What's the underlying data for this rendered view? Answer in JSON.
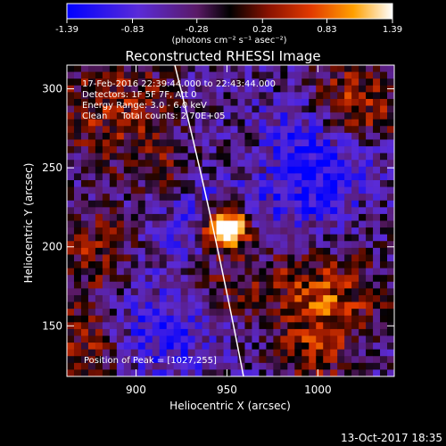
{
  "colorbar": {
    "ticks": [
      "-1.39",
      "-0.83",
      "-0.28",
      "0.28",
      "0.83",
      "1.39"
    ],
    "units": "(photons cm⁻² s⁻¹ asec⁻²)",
    "range": [
      -1.39,
      1.39
    ]
  },
  "chart_data": {
    "type": "heatmap",
    "title": "Reconstructed RHESSI Image",
    "xlabel": "Heliocentric X (arcsec)",
    "ylabel": "Heliocentric Y (arcsec)",
    "xlim": [
      862,
      1042
    ],
    "ylim": [
      118,
      315
    ],
    "x_ticks": [
      "900",
      "950",
      "1000"
    ],
    "y_ticks": [
      "150",
      "200",
      "250",
      "300"
    ],
    "x_tick_values": [
      900,
      950,
      1000
    ],
    "y_tick_values": [
      150,
      200,
      250,
      300
    ],
    "peak": [
      1027,
      255
    ],
    "info_lines": [
      "17-Feb-2016 22:39:44.000 to 22:43:44.000",
      "Detectors: 1F 5F 7F, Att 0",
      "Energy Range: 3.0 - 6.0 keV",
      "Clean     Total counts: 2.70E+05"
    ],
    "peak_label": "Position of Peak = [1027,255]"
  },
  "footer": {
    "date": "13-Oct-2017 18:35"
  }
}
